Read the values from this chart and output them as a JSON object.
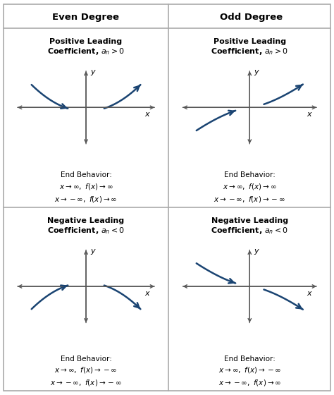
{
  "col_headers": [
    "Even Degree",
    "Odd Degree"
  ],
  "row_titles": [
    [
      "Positive Leading\nCoefficient, $a_n > 0$",
      "Positive Leading\nCoefficient, $a_n > 0$"
    ],
    [
      "Negative Leading\nCoefficient, $a_n < 0$",
      "Negative Leading\nCoefficient, $a_n < 0$"
    ]
  ],
  "end_behaviors": [
    [
      "End Behavior:\n$x \\rightarrow \\infty,\\ f(x) \\rightarrow \\infty$\n$x \\rightarrow -\\infty,\\ f(x) \\rightarrow \\infty$",
      "End Behavior:\n$x \\rightarrow \\infty,\\ f(x) \\rightarrow \\infty$\n$x \\rightarrow -\\infty,\\ f(x) \\rightarrow -\\infty$"
    ],
    [
      "End Behavior:\n$x \\rightarrow \\infty,\\ f(x) \\rightarrow -\\infty$\n$x \\rightarrow -\\infty,\\ f(x) \\rightarrow -\\infty$",
      "End Behavior:\n$x \\rightarrow \\infty,\\ f(x) \\rightarrow -\\infty$\n$x \\rightarrow -\\infty,\\ f(x) \\rightarrow \\infty$"
    ]
  ],
  "arrow_color": "#1a4472",
  "background_color": "#ffffff",
  "border_color": "#aaaaaa",
  "text_color": "#000000",
  "axis_color": "#555555",
  "header_fontsize": 9.5,
  "title_fontsize": 8.0,
  "behavior_fontsize": 7.5
}
